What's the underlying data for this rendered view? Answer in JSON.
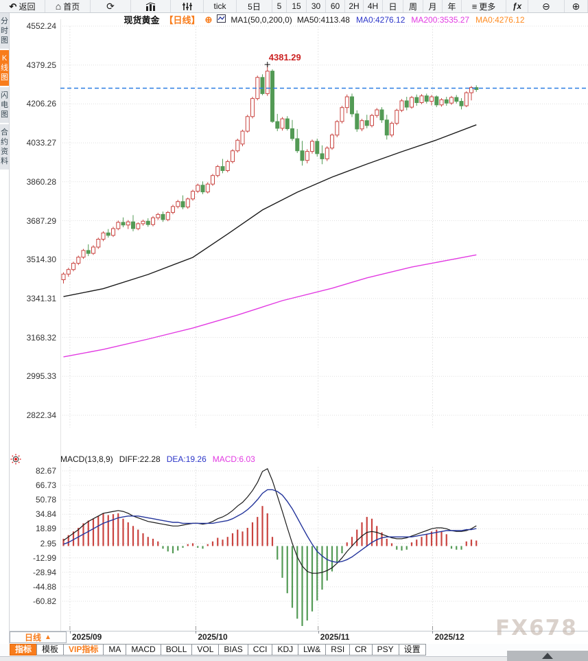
{
  "top_toolbar": {
    "items": [
      {
        "name": "back",
        "label": "返回",
        "icon": "back-arrow"
      },
      {
        "name": "home",
        "label": "首页",
        "icon": "home"
      },
      {
        "name": "refresh",
        "icon": "refresh"
      },
      {
        "name": "chart-style",
        "icon": "bar-chart"
      },
      {
        "name": "equalizer",
        "icon": "sliders"
      },
      {
        "name": "tick",
        "label": "tick"
      },
      {
        "name": "5d",
        "label": "5日"
      },
      {
        "name": "5m",
        "label": "5"
      },
      {
        "name": "15m",
        "label": "15"
      },
      {
        "name": "30m",
        "label": "30"
      },
      {
        "name": "60m",
        "label": "60"
      },
      {
        "name": "2h",
        "label": "2H"
      },
      {
        "name": "4h",
        "label": "4H"
      },
      {
        "name": "daily",
        "label": "日"
      },
      {
        "name": "weekly",
        "label": "周"
      },
      {
        "name": "monthly",
        "label": "月"
      },
      {
        "name": "yearly",
        "label": "年"
      },
      {
        "name": "more",
        "label": "更多",
        "icon": "menu"
      },
      {
        "name": "fx-indicators",
        "icon": "fx"
      },
      {
        "name": "zoom-out",
        "icon": "zoom-out"
      },
      {
        "name": "zoom-in",
        "icon": "zoom-in"
      }
    ]
  },
  "sidebar": {
    "tabs": [
      {
        "name": "time-chart",
        "label": "分时图",
        "active": false
      },
      {
        "name": "kline-chart",
        "label": "K线图",
        "active": true
      },
      {
        "name": "lightning-chart",
        "label": "闪电图",
        "active": false
      },
      {
        "name": "contract-info",
        "label": "合约资料",
        "active": false
      }
    ]
  },
  "chart_header": {
    "symbol": "现货黄金",
    "period_tag": "【日线】",
    "ma_settings": "MA1(50,0,200,0)",
    "ma_values": [
      {
        "label": "MA50:4113.48",
        "color": "#1a1a1a"
      },
      {
        "label": "MA0:4276.12",
        "color": "#2b35c8"
      },
      {
        "label": "MA200:3535.27",
        "color": "#e23ae2"
      },
      {
        "label": "MA0:4276.12",
        "color": "#ff8a1e"
      }
    ]
  },
  "macd_header": {
    "settings": "MACD(13,8,9)",
    "values": [
      {
        "label": "DIFF:22.28",
        "color": "#1a1a1a"
      },
      {
        "label": "DEA:19.26",
        "color": "#2b35c8"
      },
      {
        "label": "MACD:6.03",
        "color": "#e23ae2"
      }
    ]
  },
  "bottom": {
    "period_selector": "日线",
    "indicator_bar": [
      {
        "name": "indicators",
        "label": "指标",
        "style": "active"
      },
      {
        "name": "templates",
        "label": "模板",
        "style": "normal"
      },
      {
        "name": "vip-indicators",
        "label": "VIP指标",
        "style": "vip"
      },
      {
        "name": "ma",
        "label": "MA",
        "style": "normal"
      },
      {
        "name": "macd",
        "label": "MACD",
        "style": "normal"
      },
      {
        "name": "boll",
        "label": "BOLL",
        "style": "normal"
      },
      {
        "name": "vol",
        "label": "VOL",
        "style": "normal"
      },
      {
        "name": "bias",
        "label": "BIAS",
        "style": "normal"
      },
      {
        "name": "cci",
        "label": "CCI",
        "style": "normal"
      },
      {
        "name": "kdj",
        "label": "KDJ",
        "style": "normal"
      },
      {
        "name": "lwr",
        "label": "LW&",
        "style": "normal"
      },
      {
        "name": "rsi",
        "label": "RSI",
        "style": "normal"
      },
      {
        "name": "cr",
        "label": "CR",
        "style": "normal"
      },
      {
        "name": "psy",
        "label": "PSY",
        "style": "normal"
      },
      {
        "name": "settings",
        "label": "设置",
        "style": "normal"
      }
    ]
  },
  "watermark": "FX678",
  "colors": {
    "accent_orange": "#f87c1b",
    "up": "#c9433f",
    "down": "#539a55",
    "ma50": "#1a1a1a",
    "ma200": "#e23ae2",
    "diff": "#1a1a1a",
    "dea": "#23349b",
    "price_line": "#2a7de1",
    "annotation": "#cc2222",
    "grid": "#dfdfdf"
  },
  "chart_data": [
    {
      "type": "candlestick",
      "title": "现货黄金【日线】",
      "ylim": [
        2822.34,
        4552.24
      ],
      "y_ticks": [
        4552.24,
        4379.25,
        4206.26,
        4033.27,
        3860.28,
        3687.29,
        3514.3,
        3341.31,
        3168.32,
        2995.33,
        2822.34
      ],
      "x_axis": {
        "labels": [
          "2025/09",
          "2025/10",
          "2025/11",
          "2025/12"
        ],
        "grid_indices": [
          1.3,
          26.6,
          51.2,
          74.2
        ]
      },
      "last_price": 4276.12,
      "annotation": {
        "text": "4381.29",
        "index": 41,
        "price": 4381.29
      },
      "candles": [
        [
          3425,
          3458,
          3408,
          3450
        ],
        [
          3450,
          3478,
          3438,
          3470
        ],
        [
          3470,
          3505,
          3462,
          3498
        ],
        [
          3498,
          3532,
          3490,
          3525
        ],
        [
          3525,
          3562,
          3518,
          3555
        ],
        [
          3555,
          3582,
          3530,
          3542
        ],
        [
          3542,
          3578,
          3535,
          3570
        ],
        [
          3570,
          3612,
          3562,
          3605
        ],
        [
          3605,
          3640,
          3596,
          3633
        ],
        [
          3633,
          3650,
          3612,
          3622
        ],
        [
          3622,
          3660,
          3615,
          3652
        ],
        [
          3652,
          3688,
          3645,
          3680
        ],
        [
          3680,
          3702,
          3658,
          3668
        ],
        [
          3668,
          3690,
          3650,
          3682
        ],
        [
          3682,
          3712,
          3640,
          3652
        ],
        [
          3652,
          3680,
          3645,
          3674
        ],
        [
          3674,
          3692,
          3665,
          3685
        ],
        [
          3685,
          3698,
          3660,
          3670
        ],
        [
          3670,
          3708,
          3662,
          3700
        ],
        [
          3700,
          3722,
          3690,
          3715
        ],
        [
          3715,
          3728,
          3682,
          3692
        ],
        [
          3692,
          3730,
          3685,
          3724
        ],
        [
          3724,
          3758,
          3716,
          3750
        ],
        [
          3750,
          3780,
          3742,
          3772
        ],
        [
          3772,
          3800,
          3738,
          3748
        ],
        [
          3748,
          3790,
          3740,
          3784
        ],
        [
          3784,
          3825,
          3776,
          3818
        ],
        [
          3818,
          3852,
          3810,
          3845
        ],
        [
          3845,
          3862,
          3805,
          3815
        ],
        [
          3815,
          3858,
          3808,
          3850
        ],
        [
          3850,
          3895,
          3842,
          3888
        ],
        [
          3888,
          3935,
          3880,
          3928
        ],
        [
          3928,
          3962,
          3898,
          3910
        ],
        [
          3910,
          3958,
          3902,
          3950
        ],
        [
          3950,
          4005,
          3942,
          3998
        ],
        [
          3998,
          4052,
          3990,
          4045
        ],
        [
          4028,
          4092,
          4018,
          4085
        ],
        [
          4085,
          4158,
          4078,
          4150
        ],
        [
          4150,
          4238,
          4142,
          4230
        ],
        [
          4230,
          4332,
          4222,
          4324
        ],
        [
          4324,
          4338,
          4245,
          4252
        ],
        [
          4252,
          4381,
          4242,
          4352
        ],
        [
          4352,
          4360,
          4122,
          4128
        ],
        [
          4128,
          4162,
          4085,
          4098
        ],
        [
          4098,
          4148,
          4088,
          4140
        ],
        [
          4140,
          4152,
          4088,
          4096
        ],
        [
          4096,
          4135,
          4042,
          4052
        ],
        [
          4052,
          4095,
          3988,
          3998
        ],
        [
          3998,
          4042,
          3932,
          3955
        ],
        [
          3955,
          4005,
          3942,
          3995
        ],
        [
          3995,
          4048,
          3985,
          4040
        ],
        [
          4040,
          4052,
          3972,
          3985
        ],
        [
          3985,
          4022,
          3938,
          3962
        ],
        [
          3962,
          4018,
          3952,
          4010
        ],
        [
          4010,
          4075,
          4002,
          4068
        ],
        [
          4068,
          4135,
          4058,
          4128
        ],
        [
          4128,
          4198,
          4120,
          4190
        ],
        [
          4190,
          4248,
          4165,
          4238
        ],
        [
          4238,
          4252,
          4148,
          4162
        ],
        [
          4162,
          4178,
          4082,
          4095
        ],
        [
          4095,
          4140,
          4085,
          4132
        ],
        [
          4132,
          4158,
          4098,
          4110
        ],
        [
          4110,
          4162,
          4102,
          4155
        ],
        [
          4155,
          4188,
          4145,
          4180
        ],
        [
          4180,
          4192,
          4122,
          4135
        ],
        [
          4135,
          4158,
          4048,
          4068
        ],
        [
          4068,
          4128,
          4058,
          4120
        ],
        [
          4120,
          4185,
          4112,
          4178
        ],
        [
          4178,
          4228,
          4170,
          4220
        ],
        [
          4220,
          4238,
          4178,
          4192
        ],
        [
          4192,
          4242,
          4185,
          4235
        ],
        [
          4235,
          4248,
          4198,
          4212
        ],
        [
          4212,
          4250,
          4205,
          4242
        ],
        [
          4242,
          4252,
          4208,
          4218
        ],
        [
          4218,
          4246,
          4200,
          4238
        ],
        [
          4238,
          4244,
          4192,
          4202
        ],
        [
          4202,
          4232,
          4194,
          4225
        ],
        [
          4225,
          4238,
          4198,
          4210
        ],
        [
          4210,
          4242,
          4202,
          4235
        ],
        [
          4235,
          4246,
          4208,
          4218
        ],
        [
          4218,
          4232,
          4182,
          4198
        ],
        [
          4198,
          4262,
          4192,
          4256
        ],
        [
          4256,
          4286,
          4222,
          4279
        ],
        [
          4279,
          4289,
          4260,
          4270
        ]
      ],
      "ma50_points": [
        [
          0,
          3350
        ],
        [
          8,
          3385
        ],
        [
          17,
          3448
        ],
        [
          26,
          3524
        ],
        [
          33,
          3628
        ],
        [
          40,
          3735
        ],
        [
          47,
          3814
        ],
        [
          54,
          3881
        ],
        [
          61,
          3939
        ],
        [
          68,
          3994
        ],
        [
          75,
          4046
        ],
        [
          83,
          4113.48
        ]
      ],
      "ma200_points": [
        [
          0,
          3082
        ],
        [
          8,
          3115
        ],
        [
          17,
          3161
        ],
        [
          26,
          3210
        ],
        [
          35,
          3268
        ],
        [
          44,
          3332
        ],
        [
          54,
          3387
        ],
        [
          61,
          3433
        ],
        [
          70,
          3481
        ],
        [
          83,
          3535.27
        ]
      ]
    },
    {
      "type": "macd",
      "title": "MACD(13,8,9)",
      "ylim": [
        -60.82,
        82.67
      ],
      "y_ticks": [
        82.67,
        66.73,
        50.78,
        34.84,
        18.89,
        2.95,
        -12.99,
        -28.94,
        -44.88,
        -60.82
      ],
      "histogram": [
        8,
        12,
        16,
        20,
        25,
        28,
        30,
        33,
        36,
        34,
        35,
        36,
        30,
        26,
        22,
        18,
        14,
        10,
        8,
        5,
        -3,
        -6,
        -8,
        -5,
        -2,
        2,
        3,
        -2,
        -3,
        2,
        5,
        9,
        7,
        10,
        14,
        18,
        16,
        20,
        26,
        32,
        44,
        36,
        10,
        -15,
        -35,
        -52,
        -68,
        -80,
        -88,
        -82,
        -72,
        -60,
        -48,
        -38,
        -28,
        -18,
        -8,
        4,
        10,
        18,
        26,
        32,
        30,
        22,
        15,
        8,
        3,
        -4,
        -5,
        -4,
        4,
        7,
        10,
        13,
        16,
        18,
        16,
        13,
        -3,
        -4,
        -4,
        5,
        7,
        6
      ],
      "diff": [
        6,
        10,
        14,
        18,
        23,
        27,
        30,
        33,
        36,
        37,
        38,
        39,
        38,
        36,
        33,
        31,
        29,
        27,
        26,
        25,
        24,
        23,
        22,
        22,
        23,
        24,
        25,
        25,
        24,
        25,
        27,
        30,
        32,
        35,
        39,
        44,
        48,
        54,
        61,
        70,
        82,
        85,
        72,
        55,
        38,
        20,
        3,
        -12,
        -22,
        -28,
        -30,
        -30,
        -29,
        -27,
        -24,
        -19,
        -13,
        -6,
        0,
        6,
        11,
        15,
        16,
        15,
        13,
        11,
        9,
        8,
        8,
        9,
        11,
        13,
        15,
        17,
        19,
        20,
        20,
        19,
        17,
        16,
        16,
        17,
        19,
        22.28
      ],
      "dea": [
        2,
        4,
        7,
        10,
        13,
        16,
        19,
        22,
        25,
        27,
        29,
        31,
        32,
        33,
        33,
        33,
        32,
        31,
        30,
        29,
        28,
        27,
        26,
        26,
        25,
        25,
        25,
        25,
        25,
        25,
        25,
        26,
        27,
        28,
        30,
        33,
        36,
        40,
        45,
        51,
        58,
        62,
        62,
        60,
        56,
        49,
        41,
        31,
        21,
        11,
        2,
        -6,
        -11,
        -15,
        -17,
        -18,
        -17,
        -15,
        -12,
        -8,
        -4,
        0,
        4,
        7,
        9,
        10,
        10,
        10,
        10,
        10,
        10,
        11,
        12,
        13,
        14,
        15,
        16,
        17,
        17,
        17,
        17,
        18,
        18,
        19.26
      ]
    }
  ]
}
